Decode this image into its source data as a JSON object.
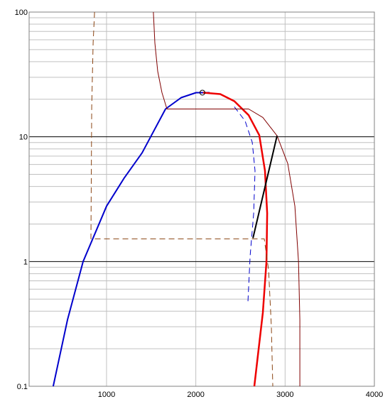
{
  "chart_data": {
    "type": "line",
    "log_y": true,
    "grid": true,
    "xlim": [
      133,
      4000
    ],
    "ylim": [
      0.1,
      100
    ],
    "xticks": [
      1000,
      2000,
      3000,
      4000
    ],
    "yticks": [
      0.1,
      1,
      10,
      100
    ],
    "series": [
      {
        "color": "#0000cc",
        "width": 2,
        "dash": false,
        "x": [
          403,
          563,
          738,
          1000,
          1199,
          1398,
          1661,
          1836,
          2003,
          2154
        ],
        "values": [
          0.1,
          0.341,
          1,
          2.78,
          4.69,
          7.43,
          16.7,
          20.6,
          22.6,
          22.6
        ]
      },
      {
        "color": "#ee0000",
        "width": 2.5,
        "dash": false,
        "x": [
          2082,
          2273,
          2432,
          2592,
          2711,
          2775,
          2799,
          2791,
          2751,
          2655
        ],
        "values": [
          22.6,
          22.0,
          19.3,
          14.9,
          10.3,
          5.35,
          2.44,
          1,
          0.389,
          0.1
        ]
      },
      {
        "color": "#0000cc",
        "width": 1,
        "dash": true,
        "x": [
          2432,
          2552,
          2632,
          2663,
          2648,
          2608,
          2584
        ],
        "values": [
          17.4,
          13.4,
          9.04,
          5.35,
          2.44,
          1.11,
          0.474
        ]
      },
      {
        "color": "#800000",
        "width": 1,
        "dash": false,
        "x": [
          1525,
          1541,
          1573,
          1621,
          1677,
          2592,
          2751,
          2910,
          3030,
          3110,
          3150,
          3165,
          3165
        ],
        "values": [
          100,
          56.6,
          33.5,
          22.6,
          16.7,
          16.7,
          14.3,
          10.2,
          6.1,
          2.78,
          1,
          0.341,
          0.1
        ]
      },
      {
        "color": "#8b4513",
        "width": 1,
        "dash": true,
        "x": [
          866,
          850,
          834,
          825,
          2767,
          2815,
          2846,
          2862
        ],
        "values": [
          100,
          56.6,
          17.4,
          1.52,
          1.52,
          0.855,
          0.3,
          0.1
        ]
      },
      {
        "color": "#000000",
        "width": 2,
        "dash": false,
        "x": [
          2640,
          2910
        ],
        "values": [
          1.54,
          10.2
        ]
      },
      {
        "color": "#000000",
        "width": 1,
        "dash": false,
        "marker": "circle",
        "x": [
          2074
        ],
        "values": [
          22.6
        ]
      }
    ]
  }
}
